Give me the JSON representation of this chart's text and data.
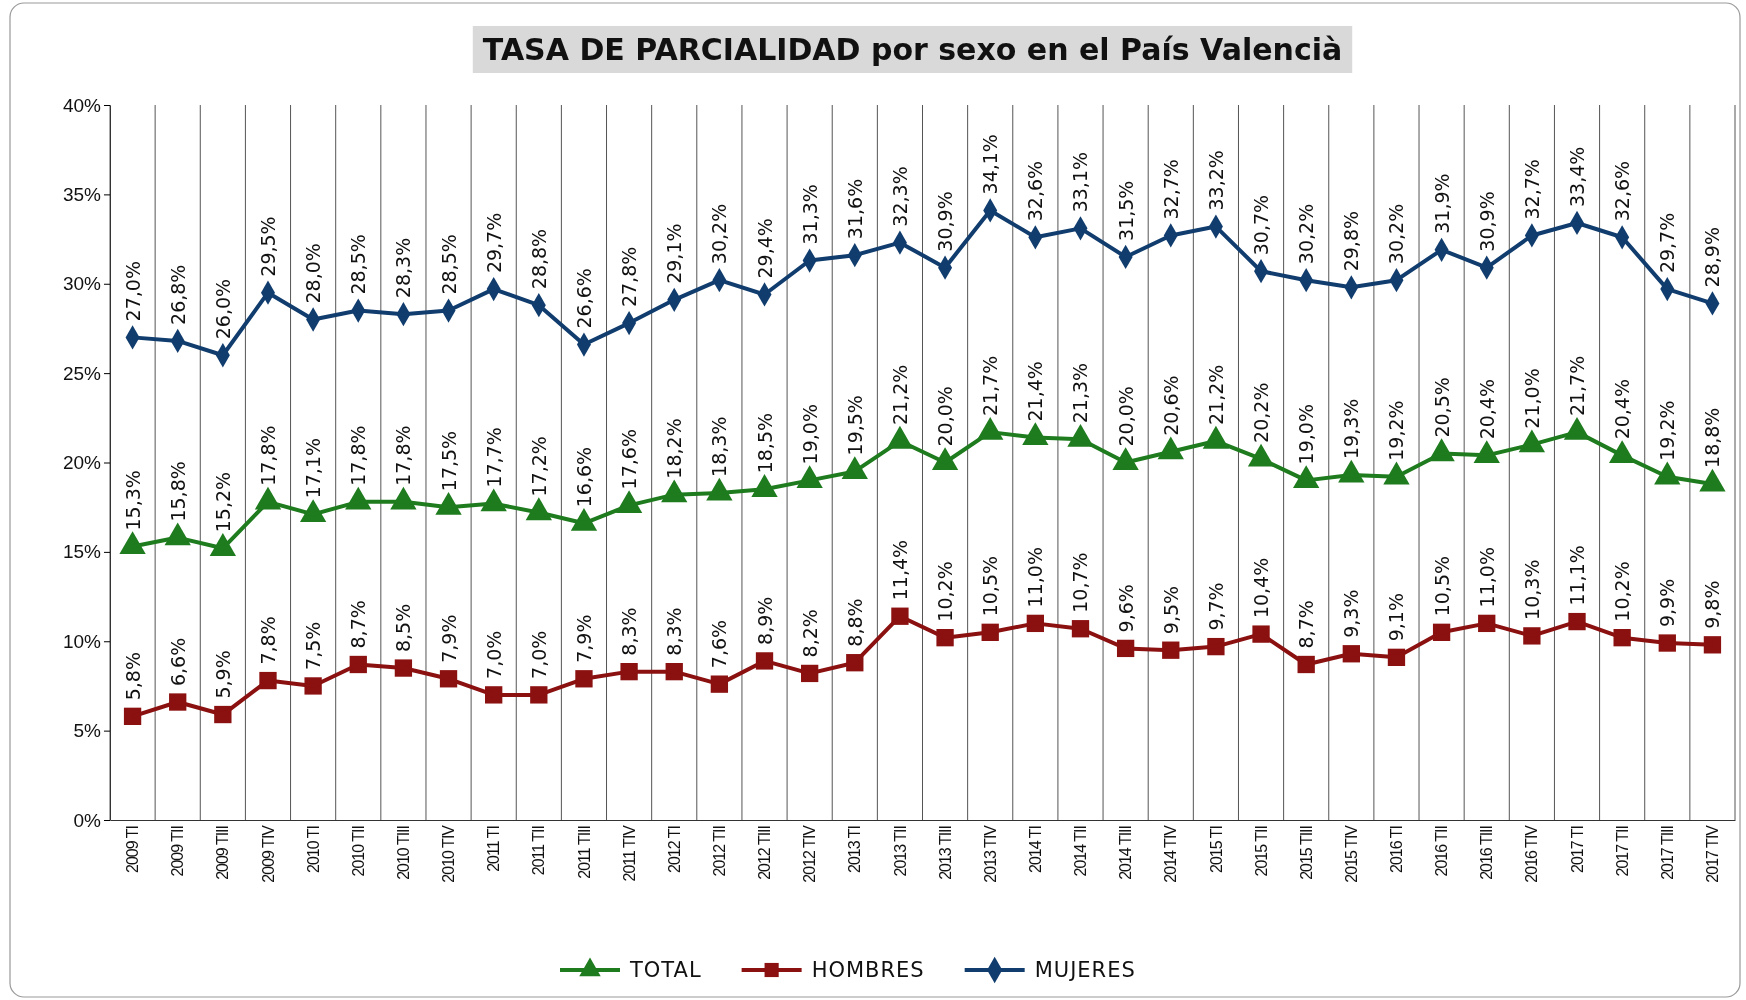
{
  "chart_data": {
    "type": "line",
    "title": "TASA DE PARCIALIDAD por sexo en el País Valencià",
    "categories": [
      "2009 TI",
      "2009 TII",
      "2009 TIII",
      "2009 TIV",
      "2010 TI",
      "2010 TII",
      "2010 TIII",
      "2010 TIV",
      "2011 TI",
      "2011 TII",
      "2011 TIII",
      "2011 TIV",
      "2012 TI",
      "2012 TII",
      "2012 TIII",
      "2012 TIV",
      "2013 TI",
      "2013 TII",
      "2013 TIII",
      "2013 TIV",
      "2014 TI",
      "2014 TII",
      "2014 TIII",
      "2014 TIV",
      "2015 TI",
      "2015 TII",
      "2015 TIII",
      "2015 TIV",
      "2016 TI",
      "2016 TII",
      "2016 TIII",
      "2016 TIV",
      "2017 TI",
      "2017 TII",
      "2017 TIII",
      "2017 TIV"
    ],
    "ylim": [
      0,
      40
    ],
    "yticks": [
      {
        "value": 0,
        "label": "0%"
      },
      {
        "value": 5,
        "label": "5%"
      },
      {
        "value": 10,
        "label": "10%"
      },
      {
        "value": 15,
        "label": "15%"
      },
      {
        "value": 20,
        "label": "20%"
      },
      {
        "value": 25,
        "label": "25%"
      },
      {
        "value": 30,
        "label": "30%"
      },
      {
        "value": 35,
        "label": "35%"
      },
      {
        "value": 40,
        "label": "40%"
      }
    ],
    "grid": "x",
    "legend": "bottom",
    "series": [
      {
        "name": "TOTAL",
        "color": "#1e7b1e",
        "marker": "triangle",
        "values": [
          15.3,
          15.8,
          15.2,
          17.8,
          17.1,
          17.8,
          17.8,
          17.5,
          17.7,
          17.2,
          16.6,
          17.6,
          18.2,
          18.3,
          18.5,
          19.0,
          19.5,
          21.2,
          20.0,
          21.7,
          21.4,
          21.3,
          20.0,
          20.6,
          21.2,
          20.2,
          19.0,
          19.3,
          19.2,
          20.5,
          20.4,
          21.0,
          21.7,
          20.4,
          19.2,
          18.8
        ],
        "value_labels": [
          "15,3%",
          "15,8%",
          "15,2%",
          "17,8%",
          "17,1%",
          "17,8%",
          "17,8%",
          "17,5%",
          "17,7%",
          "17,2%",
          "16,6%",
          "17,6%",
          "18,2%",
          "18,3%",
          "18,5%",
          "19,0%",
          "19,5%",
          "21,2%",
          "20,0%",
          "21,7%",
          "21,4%",
          "21,3%",
          "20,0%",
          "20,6%",
          "21,2%",
          "20,2%",
          "19,0%",
          "19,3%",
          "19,2%",
          "20,5%",
          "20,4%",
          "21,0%",
          "21,7%",
          "20,4%",
          "19,2%",
          "18,8%"
        ]
      },
      {
        "name": "HOMBRES",
        "color": "#8b1010",
        "marker": "square",
        "values": [
          5.8,
          6.6,
          5.9,
          7.8,
          7.5,
          8.7,
          8.5,
          7.9,
          7.0,
          7.0,
          7.9,
          8.3,
          8.3,
          7.6,
          8.9,
          8.2,
          8.8,
          11.4,
          10.2,
          10.5,
          11.0,
          10.7,
          9.6,
          9.5,
          9.7,
          10.4,
          8.7,
          9.3,
          9.1,
          10.5,
          11.0,
          10.3,
          11.1,
          10.2,
          9.9,
          9.8
        ],
        "value_labels": [
          "5,8%",
          "6,6%",
          "5,9%",
          "7,8%",
          "7,5%",
          "8,7%",
          "8,5%",
          "7,9%",
          "7,0%",
          "7,0%",
          "7,9%",
          "8,3%",
          "8,3%",
          "7,6%",
          "8,9%",
          "8,2%",
          "8,8%",
          "11,4%",
          "10,2%",
          "10,5%",
          "11,0%",
          "10,7%",
          "9,6%",
          "9,5%",
          "9,7%",
          "10,4%",
          "8,7%",
          "9,3%",
          "9,1%",
          "10,5%",
          "11,0%",
          "10,3%",
          "11,1%",
          "10,2%",
          "9,9%",
          "9,8%"
        ]
      },
      {
        "name": "MUJERES",
        "color": "#103c6e",
        "marker": "diamond",
        "values": [
          27.0,
          26.8,
          26.0,
          29.5,
          28.0,
          28.5,
          28.3,
          28.5,
          29.7,
          28.8,
          26.6,
          27.8,
          29.1,
          30.2,
          29.4,
          31.3,
          31.6,
          32.3,
          30.9,
          34.1,
          32.6,
          33.1,
          31.5,
          32.7,
          33.2,
          30.7,
          30.2,
          29.8,
          30.2,
          31.9,
          30.9,
          32.7,
          33.4,
          32.6,
          29.7,
          28.9
        ],
        "value_labels": [
          "27,0%",
          "26,8%",
          "26,0%",
          "29,5%",
          "28,0%",
          "28,5%",
          "28,3%",
          "28,5%",
          "29,7%",
          "28,8%",
          "26,6%",
          "27,8%",
          "29,1%",
          "30,2%",
          "29,4%",
          "31,3%",
          "31,6%",
          "32,3%",
          "30,9%",
          "34,1%",
          "32,6%",
          "33,1%",
          "31,5%",
          "32,7%",
          "33,2%",
          "30,7%",
          "30,2%",
          "29,8%",
          "30,2%",
          "31,9%",
          "30,9%",
          "32,7%",
          "33,4%",
          "32,6%",
          "29,7%",
          "28,9%"
        ]
      }
    ]
  }
}
